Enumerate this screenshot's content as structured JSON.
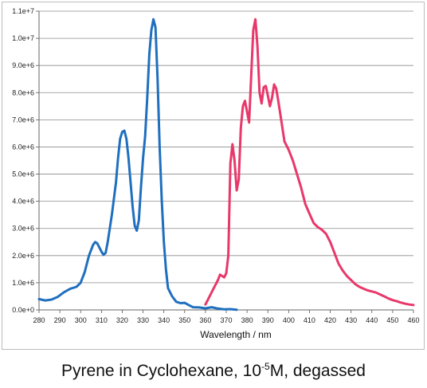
{
  "chart_data": {
    "type": "line",
    "title": "",
    "xlabel": "Wavelength / nm",
    "ylabel": "",
    "xlim": [
      280,
      460
    ],
    "ylim": [
      0,
      11000000
    ],
    "xticks": [
      "280",
      "290",
      "300",
      "310",
      "320",
      "330",
      "340",
      "350",
      "360",
      "370",
      "380",
      "390",
      "400",
      "410",
      "420",
      "430",
      "440",
      "450",
      "460"
    ],
    "yticks": [
      "0.0e+0",
      "1.0e+6",
      "2.0e+6",
      "3.0e+6",
      "4.0e+6",
      "5.0e+6",
      "6.0e+6",
      "7.0e+6",
      "8.0e+6",
      "9.0e+6",
      "1.0e+7",
      "1.1e+7"
    ],
    "grid": true,
    "legend": "none",
    "series": [
      {
        "color": "#1f6fbf",
        "points": [
          [
            280,
            400000
          ],
          [
            283,
            350000
          ],
          [
            286,
            380000
          ],
          [
            289,
            480000
          ],
          [
            292,
            650000
          ],
          [
            295,
            780000
          ],
          [
            298,
            850000
          ],
          [
            300,
            1000000
          ],
          [
            302,
            1400000
          ],
          [
            304,
            2000000
          ],
          [
            306,
            2400000
          ],
          [
            307,
            2500000
          ],
          [
            308,
            2450000
          ],
          [
            309,
            2300000
          ],
          [
            310,
            2150000
          ],
          [
            311,
            2030000
          ],
          [
            312,
            2100000
          ],
          [
            313,
            2500000
          ],
          [
            315,
            3500000
          ],
          [
            317,
            4700000
          ],
          [
            318,
            5600000
          ],
          [
            319,
            6300000
          ],
          [
            320,
            6550000
          ],
          [
            321,
            6600000
          ],
          [
            322,
            6300000
          ],
          [
            323,
            5600000
          ],
          [
            324,
            4700000
          ],
          [
            325,
            3800000
          ],
          [
            326,
            3100000
          ],
          [
            327,
            2920000
          ],
          [
            328,
            3300000
          ],
          [
            329,
            4500000
          ],
          [
            330,
            5600000
          ],
          [
            331,
            6400000
          ],
          [
            332,
            7800000
          ],
          [
            333,
            9400000
          ],
          [
            334,
            10300000
          ],
          [
            335,
            10700000
          ],
          [
            336,
            10400000
          ],
          [
            337,
            8500000
          ],
          [
            338,
            6000000
          ],
          [
            339,
            4000000
          ],
          [
            340,
            2500000
          ],
          [
            341,
            1500000
          ],
          [
            342,
            800000
          ],
          [
            344,
            500000
          ],
          [
            346,
            300000
          ],
          [
            348,
            250000
          ],
          [
            350,
            260000
          ],
          [
            352,
            180000
          ],
          [
            354,
            100000
          ],
          [
            357,
            90000
          ],
          [
            360,
            60000
          ],
          [
            363,
            100000
          ],
          [
            366,
            50000
          ],
          [
            369,
            20000
          ],
          [
            372,
            30000
          ],
          [
            375,
            10000
          ]
        ]
      },
      {
        "color": "#e8386a",
        "points": [
          [
            360,
            200000
          ],
          [
            362,
            500000
          ],
          [
            364,
            800000
          ],
          [
            366,
            1100000
          ],
          [
            367,
            1300000
          ],
          [
            368,
            1250000
          ],
          [
            369,
            1200000
          ],
          [
            370,
            1350000
          ],
          [
            371,
            2000000
          ],
          [
            372,
            5400000
          ],
          [
            373,
            6100000
          ],
          [
            374,
            5500000
          ],
          [
            375,
            4400000
          ],
          [
            376,
            4800000
          ],
          [
            377,
            6700000
          ],
          [
            378,
            7500000
          ],
          [
            379,
            7700000
          ],
          [
            380,
            7300000
          ],
          [
            381,
            6900000
          ],
          [
            382,
            8600000
          ],
          [
            383,
            10300000
          ],
          [
            384,
            10700000
          ],
          [
            385,
            9700000
          ],
          [
            386,
            8000000
          ],
          [
            387,
            7600000
          ],
          [
            388,
            8200000
          ],
          [
            389,
            8250000
          ],
          [
            390,
            7900000
          ],
          [
            391,
            7500000
          ],
          [
            392,
            7800000
          ],
          [
            393,
            8300000
          ],
          [
            394,
            8150000
          ],
          [
            395,
            7700000
          ],
          [
            396,
            7200000
          ],
          [
            397,
            6700000
          ],
          [
            398,
            6200000
          ],
          [
            400,
            5900000
          ],
          [
            402,
            5500000
          ],
          [
            404,
            5000000
          ],
          [
            406,
            4500000
          ],
          [
            408,
            3900000
          ],
          [
            410,
            3550000
          ],
          [
            412,
            3200000
          ],
          [
            414,
            3050000
          ],
          [
            416,
            2950000
          ],
          [
            418,
            2800000
          ],
          [
            420,
            2500000
          ],
          [
            422,
            2100000
          ],
          [
            424,
            1700000
          ],
          [
            426,
            1450000
          ],
          [
            428,
            1250000
          ],
          [
            430,
            1100000
          ],
          [
            432,
            950000
          ],
          [
            434,
            850000
          ],
          [
            436,
            780000
          ],
          [
            438,
            720000
          ],
          [
            440,
            680000
          ],
          [
            442,
            640000
          ],
          [
            444,
            570000
          ],
          [
            446,
            500000
          ],
          [
            448,
            420000
          ],
          [
            450,
            360000
          ],
          [
            452,
            320000
          ],
          [
            454,
            270000
          ],
          [
            456,
            230000
          ],
          [
            458,
            200000
          ],
          [
            460,
            180000
          ]
        ]
      }
    ]
  },
  "caption": {
    "before": "Pyrene in Cyclohexane, 10",
    "sup": "-5",
    "after": "M, degassed"
  }
}
